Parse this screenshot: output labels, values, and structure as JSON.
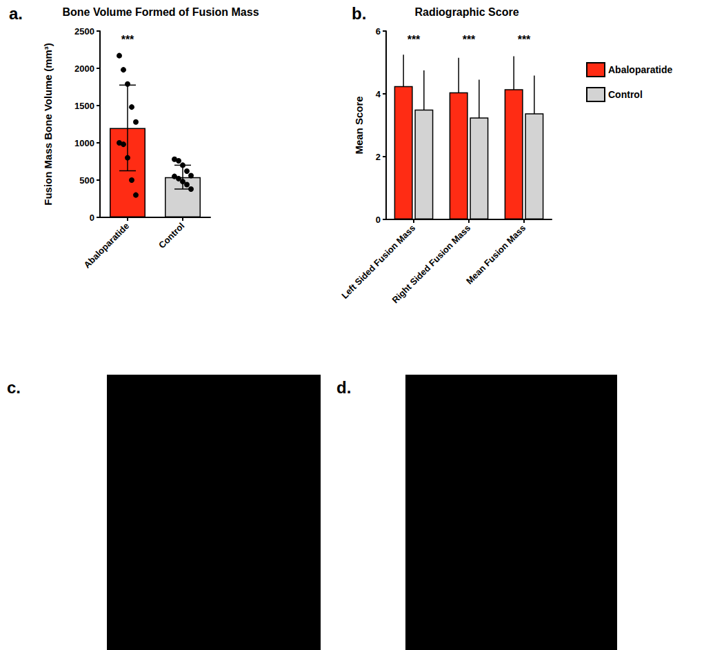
{
  "chart_data": [
    {
      "type": "bar",
      "panel_label": "a.",
      "title": "Bone Volume Formed of Fusion Mass",
      "ylabel": "Fusion Mass Bone Volume (mm³)",
      "categories": [
        "Abaloparatide",
        "Control"
      ],
      "values": [
        1200,
        540
      ],
      "error": [
        575,
        160
      ],
      "points": [
        [
          2170,
          1980,
          1790,
          1480,
          1280,
          1000,
          980,
          800,
          500,
          300
        ],
        [
          780,
          760,
          700,
          620,
          560,
          550,
          520,
          480,
          440,
          380
        ]
      ],
      "colors": [
        "#ff2c14",
        "#d3d3d3"
      ],
      "annotations": [
        {
          "category": "Abaloparatide",
          "text": "***"
        }
      ],
      "ylim": [
        0,
        2500
      ],
      "yticks": [
        0,
        500,
        1000,
        1500,
        2000,
        2500
      ],
      "grid": false
    },
    {
      "type": "bar",
      "panel_label": "b.",
      "title": "Radiographic Score",
      "ylabel": "Mean Score",
      "categories": [
        "Left Sided Fusion Mass",
        "Right Sided Fusion Mass",
        "Mean Fusion Mass"
      ],
      "series": [
        {
          "name": "Abaloparatide",
          "color": "#ff2c14",
          "values": [
            4.25,
            4.05,
            4.15
          ],
          "error": [
            1.0,
            1.1,
            1.05
          ]
        },
        {
          "name": "Control",
          "color": "#d3d3d3",
          "values": [
            3.5,
            3.25,
            3.38
          ],
          "error": [
            1.25,
            1.2,
            1.2
          ]
        }
      ],
      "annotations": [
        {
          "category": "Left Sided Fusion Mass",
          "text": "***"
        },
        {
          "category": "Right Sided Fusion Mass",
          "text": "***"
        },
        {
          "category": "Mean Fusion Mass",
          "text": "***"
        }
      ],
      "ylim": [
        0,
        6
      ],
      "yticks": [
        0,
        2,
        4,
        6
      ],
      "grid": false,
      "legend": "right"
    }
  ],
  "images": [
    {
      "panel_label": "c."
    },
    {
      "panel_label": "d."
    }
  ]
}
